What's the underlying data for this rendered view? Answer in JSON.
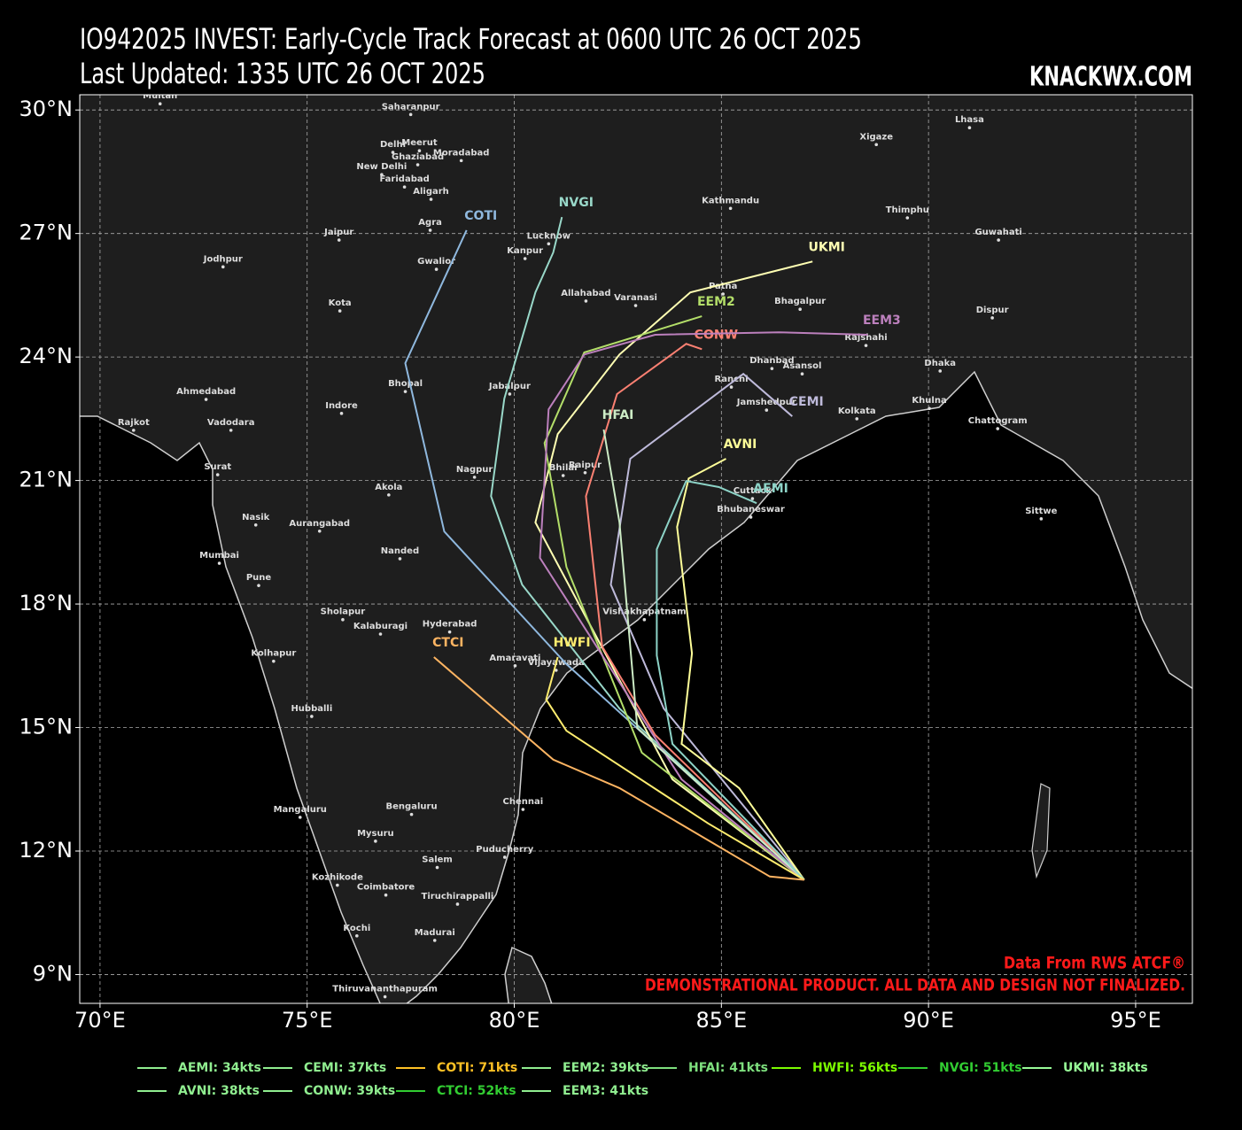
{
  "header": {
    "title": "IO942025 INVEST: Early-Cycle Track Forecast at 0600 UTC 26 OCT 2025",
    "subtitle": "Last Updated: 1335 UTC 26 OCT 2025",
    "site": "KNACKWX.COM"
  },
  "map": {
    "xlim": [
      69.51,
      96.37
    ],
    "ylim": [
      8.3,
      30.37
    ],
    "grid": true,
    "xticks": [
      {
        "value": 70,
        "label": "70°E"
      },
      {
        "value": 75,
        "label": "75°E"
      },
      {
        "value": 80,
        "label": "80°E"
      },
      {
        "value": 85,
        "label": "85°E"
      },
      {
        "value": 90,
        "label": "90°E"
      },
      {
        "value": 95,
        "label": "95°E"
      }
    ],
    "yticks": [
      {
        "value": 9,
        "label": "9°N"
      },
      {
        "value": 12,
        "label": "12°N"
      },
      {
        "value": 15,
        "label": "15°N"
      },
      {
        "value": 18,
        "label": "18°N"
      },
      {
        "value": 21,
        "label": "21°N"
      },
      {
        "value": 24,
        "label": "24°N"
      },
      {
        "value": 27,
        "label": "27°N"
      },
      {
        "value": 30,
        "label": "30°N"
      }
    ],
    "tracks": [
      {
        "name": "COTI",
        "color": "#8fb8de",
        "lon": [
          87.0,
          81.26,
          78.31,
          77.37,
          78.85
        ],
        "lat": [
          11.3,
          16.54,
          19.76,
          23.85,
          27.08
        ]
      },
      {
        "name": "NVGI",
        "color": "#99d8c9",
        "lon": [
          87.0,
          82.54,
          80.19,
          79.44,
          79.76,
          80.51,
          80.94,
          81.15
        ],
        "lat": [
          11.3,
          15.46,
          18.47,
          20.62,
          22.99,
          25.57,
          26.54,
          27.4
        ]
      },
      {
        "name": "UKMI",
        "color": "#ffffb3",
        "lon": [
          87.0,
          83.82,
          80.51,
          81.05,
          82.54,
          84.25,
          87.2
        ],
        "lat": [
          11.3,
          13.74,
          19.98,
          22.13,
          24.06,
          25.57,
          26.32
        ]
      },
      {
        "name": "EEM2",
        "color": "#b3de69",
        "lon": [
          87.0,
          83.08,
          81.26,
          80.73,
          81.69,
          84.53
        ],
        "lat": [
          11.3,
          14.39,
          18.9,
          21.91,
          24.11,
          24.99
        ]
      },
      {
        "name": "CONW",
        "color": "#fb8072",
        "lon": [
          87.0,
          83.4,
          82.12,
          81.73,
          82.48,
          84.15,
          84.53
        ],
        "lat": [
          11.3,
          14.82,
          16.97,
          20.62,
          23.1,
          24.32,
          24.19
        ]
      },
      {
        "name": "EEM3",
        "color": "#bc80bd",
        "lon": [
          87.0,
          84.04,
          80.62,
          80.83,
          81.69,
          83.4,
          86.39,
          88.53
        ],
        "lat": [
          11.3,
          13.74,
          19.12,
          22.73,
          24.06,
          24.54,
          24.6,
          24.54
        ]
      },
      {
        "name": "CEMI",
        "color": "#bebada",
        "lon": [
          87.0,
          83.61,
          82.33,
          82.8,
          85.53,
          86.71
        ],
        "lat": [
          11.3,
          15.46,
          18.47,
          21.53,
          23.59,
          22.56
        ]
      },
      {
        "name": "HFAI",
        "color": "#ccebc5",
        "lon": [
          87.0,
          82.97,
          82.54,
          82.16
        ],
        "lat": [
          11.3,
          14.99,
          19.98,
          22.24
        ]
      },
      {
        "name": "AVNI",
        "color": "#ffff99",
        "lon": [
          87.0,
          85.43,
          84.04,
          84.29,
          83.93,
          84.21,
          85.11
        ],
        "lat": [
          11.3,
          13.53,
          14.6,
          16.8,
          19.87,
          21.05,
          21.53
        ]
      },
      {
        "name": "AEMI",
        "color": "#8dd3c7",
        "lon": [
          87.0,
          83.82,
          83.44,
          83.44,
          84.15,
          84.94,
          85.85
        ],
        "lat": [
          11.3,
          14.6,
          16.75,
          19.33,
          20.99,
          20.84,
          20.45
        ]
      },
      {
        "name": "HWFI",
        "color": "#ffed6f",
        "lon": [
          87.0,
          84.68,
          81.26,
          80.77,
          81.05
        ],
        "lat": [
          11.3,
          12.67,
          14.92,
          15.68,
          16.71
        ]
      },
      {
        "name": "CTCI",
        "color": "#fdb462",
        "lon": [
          87.0,
          86.17,
          82.54,
          80.94,
          78.06
        ],
        "lat": [
          11.3,
          11.38,
          13.53,
          14.22,
          16.71
        ]
      }
    ],
    "cities": [
      {
        "name": "Multan",
        "lon": 71.45,
        "lat": 30.15
      },
      {
        "name": "Saharanpur",
        "lon": 77.5,
        "lat": 29.89
      },
      {
        "name": "Meerut",
        "lon": 77.71,
        "lat": 29.01
      },
      {
        "name": "Delhi",
        "lon": 77.07,
        "lat": 28.97
      },
      {
        "name": "Moradabad",
        "lon": 78.72,
        "lat": 28.77
      },
      {
        "name": "Ghaziabad",
        "lon": 77.67,
        "lat": 28.67
      },
      {
        "name": "New Delhi",
        "lon": 76.8,
        "lat": 28.43
      },
      {
        "name": "Faridabad",
        "lon": 77.35,
        "lat": 28.13
      },
      {
        "name": "Aligarh",
        "lon": 77.99,
        "lat": 27.83
      },
      {
        "name": "Lhasa",
        "lon": 90.99,
        "lat": 29.57
      },
      {
        "name": "Xigaze",
        "lon": 88.74,
        "lat": 29.16
      },
      {
        "name": "Kathmandu",
        "lon": 85.22,
        "lat": 27.61
      },
      {
        "name": "Thimphu",
        "lon": 89.49,
        "lat": 27.38
      },
      {
        "name": "Guwahati",
        "lon": 91.69,
        "lat": 26.84
      },
      {
        "name": "Agra",
        "lon": 77.97,
        "lat": 27.08
      },
      {
        "name": "Jaipur",
        "lon": 75.77,
        "lat": 26.84
      },
      {
        "name": "Lucknow",
        "lon": 80.83,
        "lat": 26.75
      },
      {
        "name": "Kanpur",
        "lon": 80.26,
        "lat": 26.39
      },
      {
        "name": "Gwalior",
        "lon": 78.12,
        "lat": 26.13
      },
      {
        "name": "Jodhpur",
        "lon": 72.97,
        "lat": 26.19
      },
      {
        "name": "Patna",
        "lon": 85.04,
        "lat": 25.53
      },
      {
        "name": "Allahabad",
        "lon": 81.73,
        "lat": 25.36
      },
      {
        "name": "Varanasi",
        "lon": 82.93,
        "lat": 25.25
      },
      {
        "name": "Bhagalpur",
        "lon": 86.9,
        "lat": 25.16
      },
      {
        "name": "Kota",
        "lon": 75.79,
        "lat": 25.12
      },
      {
        "name": "Dispur",
        "lon": 91.54,
        "lat": 24.95
      },
      {
        "name": "Rajshahi",
        "lon": 88.49,
        "lat": 24.28
      },
      {
        "name": "Dhanbad",
        "lon": 86.22,
        "lat": 23.72
      },
      {
        "name": "Asansol",
        "lon": 86.95,
        "lat": 23.59
      },
      {
        "name": "Dhaka",
        "lon": 90.28,
        "lat": 23.66
      },
      {
        "name": "Ranchi",
        "lon": 85.24,
        "lat": 23.27
      },
      {
        "name": "Bhopal",
        "lon": 77.37,
        "lat": 23.16
      },
      {
        "name": "Jabalpur",
        "lon": 79.89,
        "lat": 23.1
      },
      {
        "name": "Ahmedabad",
        "lon": 72.56,
        "lat": 22.97
      },
      {
        "name": "Jamshedpur",
        "lon": 86.09,
        "lat": 22.71
      },
      {
        "name": "Khulna",
        "lon": 90.02,
        "lat": 22.75
      },
      {
        "name": "Indore",
        "lon": 75.83,
        "lat": 22.63
      },
      {
        "name": "Kolkata",
        "lon": 88.27,
        "lat": 22.5
      },
      {
        "name": "Rajkot",
        "lon": 70.81,
        "lat": 22.22
      },
      {
        "name": "Vadodara",
        "lon": 73.16,
        "lat": 22.22
      },
      {
        "name": "Chattogram",
        "lon": 91.67,
        "lat": 22.26
      },
      {
        "name": "Surat",
        "lon": 72.84,
        "lat": 21.14
      },
      {
        "name": "Nagpur",
        "lon": 79.04,
        "lat": 21.08
      },
      {
        "name": "Bhilai",
        "lon": 81.18,
        "lat": 21.12
      },
      {
        "name": "Raipur",
        "lon": 81.71,
        "lat": 21.19
      },
      {
        "name": "Akola",
        "lon": 76.97,
        "lat": 20.65
      },
      {
        "name": "Cuttack",
        "lon": 85.75,
        "lat": 20.56
      },
      {
        "name": "Bhubaneswar",
        "lon": 85.71,
        "lat": 20.11
      },
      {
        "name": "Sittwe",
        "lon": 92.72,
        "lat": 20.07
      },
      {
        "name": "Nasik",
        "lon": 73.76,
        "lat": 19.92
      },
      {
        "name": "Aurangabad",
        "lon": 75.3,
        "lat": 19.77
      },
      {
        "name": "Mumbai",
        "lon": 72.88,
        "lat": 18.99
      },
      {
        "name": "Nanded",
        "lon": 77.24,
        "lat": 19.1
      },
      {
        "name": "Pune",
        "lon": 73.83,
        "lat": 18.45
      },
      {
        "name": "Vishakhapatnam",
        "lon": 83.14,
        "lat": 17.62
      },
      {
        "name": "Sholapur",
        "lon": 75.86,
        "lat": 17.62
      },
      {
        "name": "Kalaburagi",
        "lon": 76.77,
        "lat": 17.27
      },
      {
        "name": "Hyderabad",
        "lon": 78.44,
        "lat": 17.32
      },
      {
        "name": "Amaravati",
        "lon": 80.02,
        "lat": 16.5
      },
      {
        "name": "Vijayawada",
        "lon": 81.01,
        "lat": 16.39
      },
      {
        "name": "Kolhapur",
        "lon": 74.19,
        "lat": 16.61
      },
      {
        "name": "Hubballi",
        "lon": 75.11,
        "lat": 15.27
      },
      {
        "name": "Chennai",
        "lon": 80.21,
        "lat": 13.01
      },
      {
        "name": "Mangaluru",
        "lon": 74.83,
        "lat": 12.82
      },
      {
        "name": "Bengaluru",
        "lon": 77.52,
        "lat": 12.89
      },
      {
        "name": "Mysuru",
        "lon": 76.65,
        "lat": 12.24
      },
      {
        "name": "Puducherry",
        "lon": 79.77,
        "lat": 11.85
      },
      {
        "name": "Salem",
        "lon": 78.14,
        "lat": 11.6
      },
      {
        "name": "Kozhikode",
        "lon": 75.73,
        "lat": 11.17
      },
      {
        "name": "Coimbatore",
        "lon": 76.9,
        "lat": 10.93
      },
      {
        "name": "Tiruchirappalli",
        "lon": 78.63,
        "lat": 10.71
      },
      {
        "name": "Kochi",
        "lon": 76.2,
        "lat": 9.94
      },
      {
        "name": "Madurai",
        "lon": 78.08,
        "lat": 9.83
      },
      {
        "name": "Thiruvananthapuram",
        "lon": 76.88,
        "lat": 8.46
      }
    ]
  },
  "legend": [
    {
      "label": "AEMI: 34kts",
      "color": "#90ee90"
    },
    {
      "label": "CEMI: 37kts",
      "color": "#90ee90"
    },
    {
      "label": "COTI: 71kts",
      "color": "#ffc125"
    },
    {
      "label": "EEM2: 39kts",
      "color": "#90ee90"
    },
    {
      "label": "HFAI: 41kts",
      "color": "#7ee07e"
    },
    {
      "label": "HWFI: 56kts",
      "color": "#7cfc00"
    },
    {
      "label": "NVGI: 51kts",
      "color": "#32cd32"
    },
    {
      "label": "UKMI: 38kts",
      "color": "#98fb98"
    },
    {
      "label": "AVNI: 38kts",
      "color": "#90ee90"
    },
    {
      "label": "CONW: 39kts",
      "color": "#90ee90"
    },
    {
      "label": "CTCI: 52kts",
      "color": "#32cd32"
    },
    {
      "label": "EEM3: 41kts",
      "color": "#90ee90"
    }
  ],
  "footer": {
    "source": "Data From RWS ATCF®",
    "disclaimer": "DEMONSTRATIONAL PRODUCT. ALL DATA AND DESIGN NOT FINALIZED."
  }
}
